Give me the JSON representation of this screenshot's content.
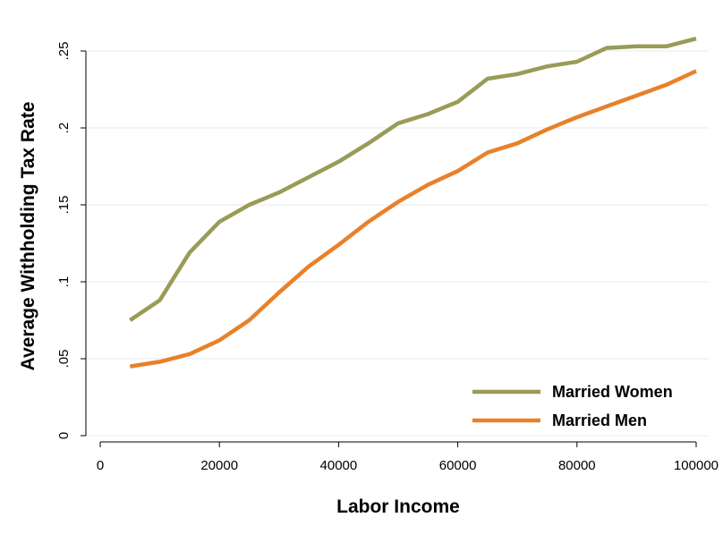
{
  "chart_data": {
    "type": "line",
    "xlabel": "Labor Income",
    "ylabel": "Average Withholding Tax Rate",
    "xlim": [
      0,
      100000
    ],
    "ylim": [
      0,
      0.25
    ],
    "x_ticks": [
      0,
      20000,
      40000,
      60000,
      80000,
      100000
    ],
    "x_tick_labels": [
      "0",
      "20000",
      "40000",
      "60000",
      "80000",
      "100000"
    ],
    "y_ticks": [
      0,
      0.05,
      0.1,
      0.15,
      0.2,
      0.25
    ],
    "y_tick_labels": [
      "0",
      ".05",
      ".1",
      ".15",
      ".2",
      ".25"
    ],
    "grid": "horizontal",
    "legend_position": "bottom-right",
    "x": [
      5000,
      10000,
      15000,
      20000,
      25000,
      30000,
      35000,
      40000,
      45000,
      50000,
      55000,
      60000,
      65000,
      70000,
      75000,
      80000,
      85000,
      90000,
      95000,
      100000
    ],
    "series": [
      {
        "name": "Married Women",
        "color": "#999b57",
        "values": [
          0.075,
          0.088,
          0.119,
          0.139,
          0.15,
          0.158,
          0.168,
          0.178,
          0.19,
          0.203,
          0.209,
          0.217,
          0.232,
          0.235,
          0.24,
          0.243,
          0.252,
          0.253,
          0.253,
          0.258
        ]
      },
      {
        "name": "Married Men",
        "color": "#e8812a",
        "values": [
          0.045,
          0.048,
          0.053,
          0.062,
          0.075,
          0.093,
          0.11,
          0.124,
          0.139,
          0.152,
          0.163,
          0.172,
          0.184,
          0.19,
          0.199,
          0.207,
          0.214,
          0.221,
          0.228,
          0.237
        ]
      }
    ]
  }
}
